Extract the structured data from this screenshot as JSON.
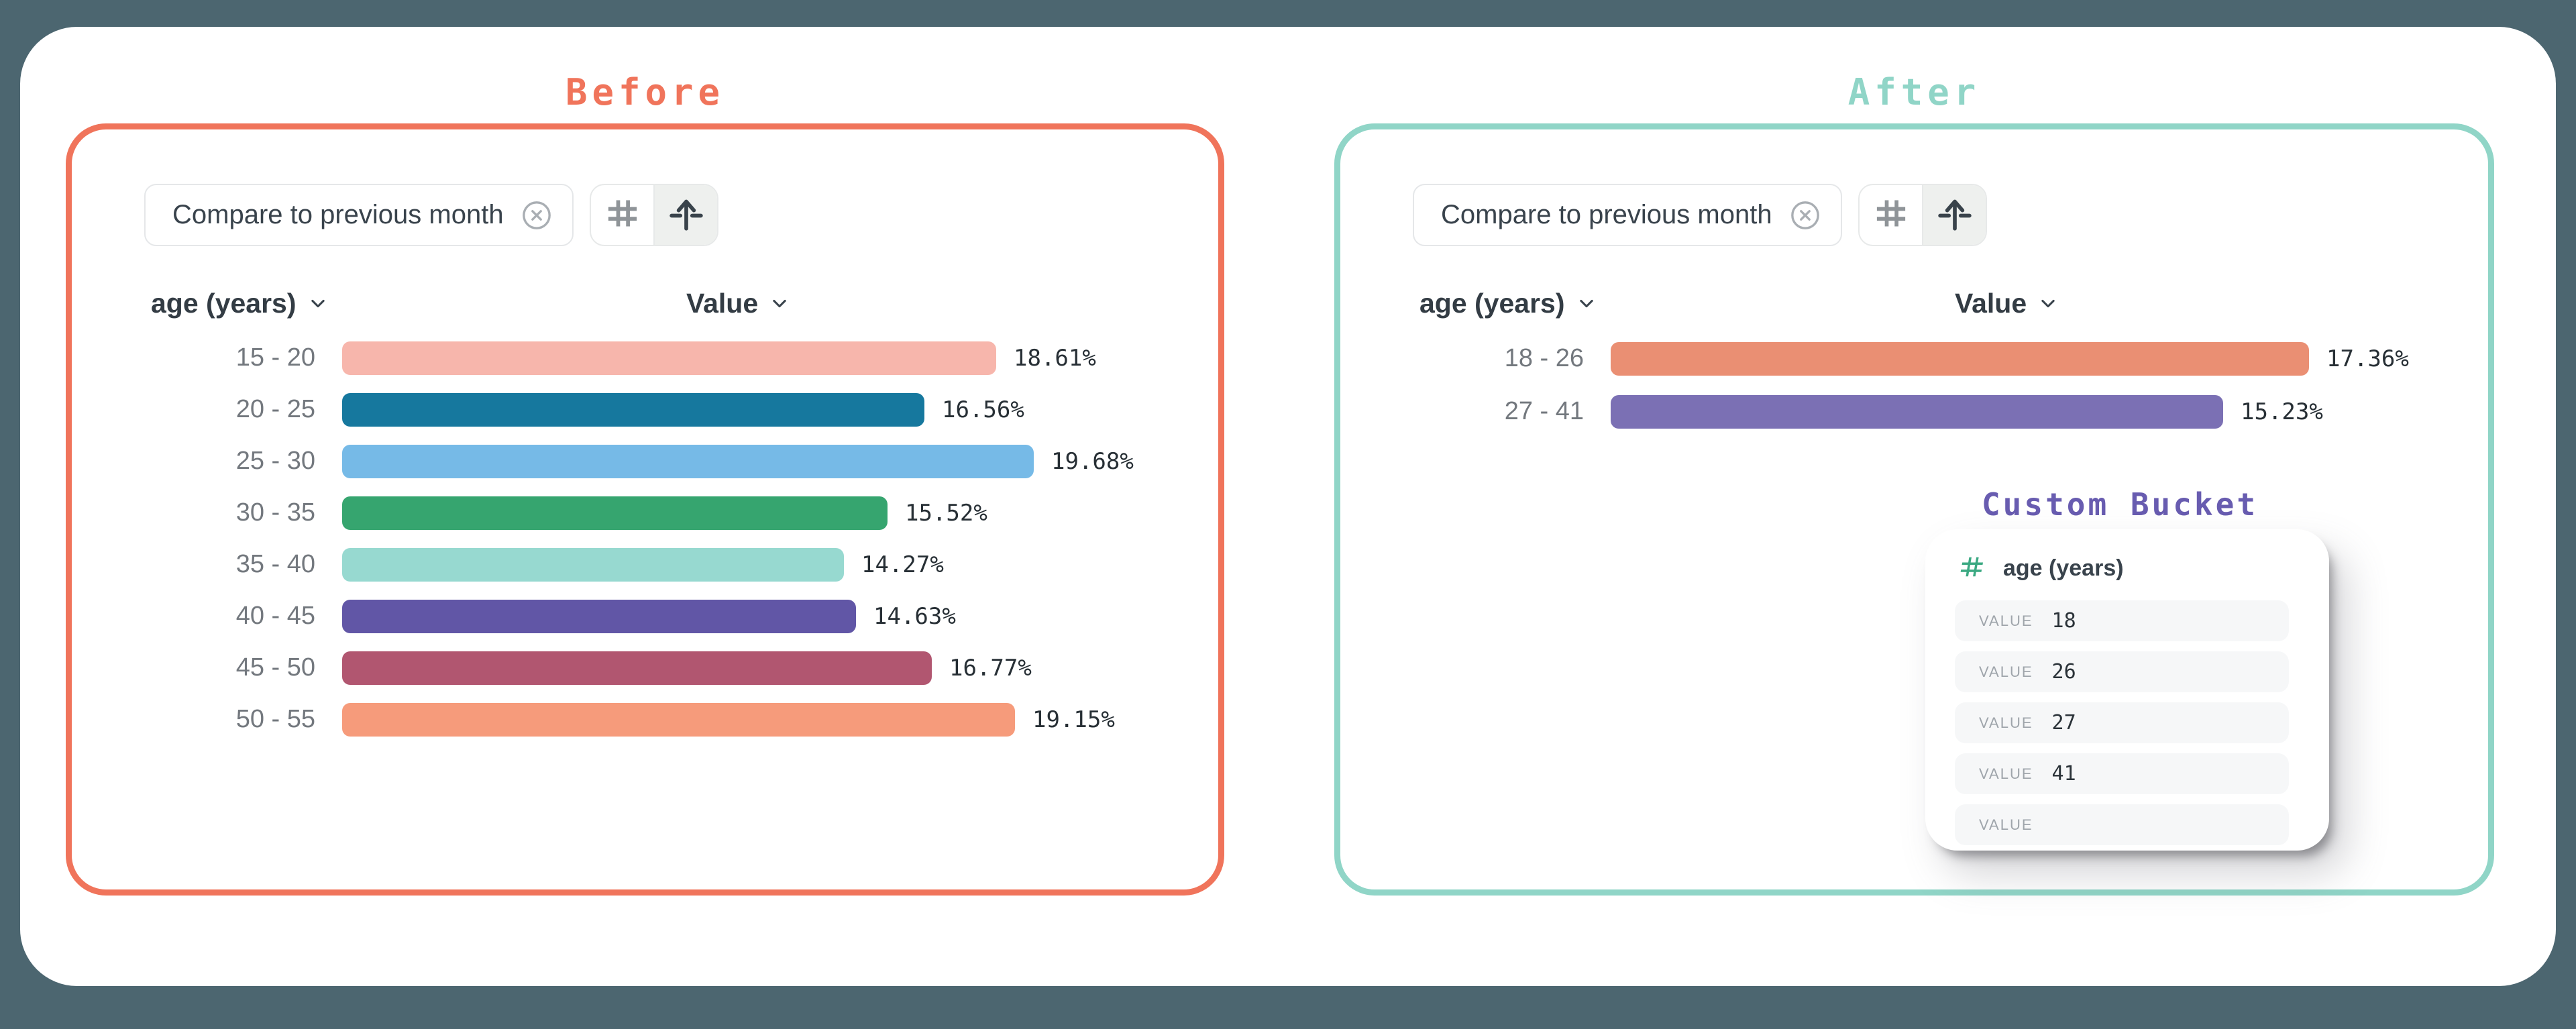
{
  "page": {
    "titles": {
      "before": "Before",
      "after": "After"
    },
    "accent_before": "#F0745B",
    "accent_after": "#90D5C7",
    "background": "#4C6670"
  },
  "panel": {
    "filter_chip": {
      "label": "Compare to previous month",
      "close_icon": "circle-x-icon"
    },
    "toolbar": {
      "buttons": [
        {
          "icon": "hash-icon",
          "selected": false
        },
        {
          "icon": "arrow-up-axis-icon",
          "selected": true
        }
      ]
    },
    "columns": {
      "category": "age (years)",
      "value": "Value"
    }
  },
  "chart_data": [
    {
      "id": "before",
      "type": "bar",
      "orientation": "horizontal",
      "title": "Before",
      "xlabel": "Value",
      "ylabel": "age (years)",
      "unit": "%",
      "categories": [
        "15 - 20",
        "20 - 25",
        "25 - 30",
        "30 - 35",
        "35 - 40",
        "40 - 45",
        "45 - 50",
        "50 - 55"
      ],
      "values": [
        18.61,
        16.56,
        19.68,
        15.52,
        14.27,
        14.63,
        16.77,
        19.15
      ],
      "labels": [
        "18.61%",
        "16.56%",
        "19.68%",
        "15.52%",
        "14.27%",
        "14.63%",
        "16.77%",
        "19.15%"
      ],
      "colors": [
        "#F7B6AC",
        "#16789E",
        "#76BAE7",
        "#36A56F",
        "#97D9D0",
        "#6156A6",
        "#B15670",
        "#F69B7B"
      ]
    },
    {
      "id": "after",
      "type": "bar",
      "orientation": "horizontal",
      "title": "After",
      "xlabel": "Value",
      "ylabel": "age (years)",
      "unit": "%",
      "categories": [
        "18 - 26",
        "27 - 41"
      ],
      "values": [
        17.36,
        15.23
      ],
      "labels": [
        "17.36%",
        "15.23%"
      ],
      "colors": [
        "#EA8F73",
        "#7B70B4"
      ]
    }
  ],
  "custom_bucket": {
    "title": "Custom Bucket",
    "title_color": "#685CB0",
    "column": "age (years)",
    "column_icon": "hash-icon",
    "field_label": "VALUE",
    "values": [
      "18",
      "26",
      "27",
      "41",
      ""
    ]
  }
}
